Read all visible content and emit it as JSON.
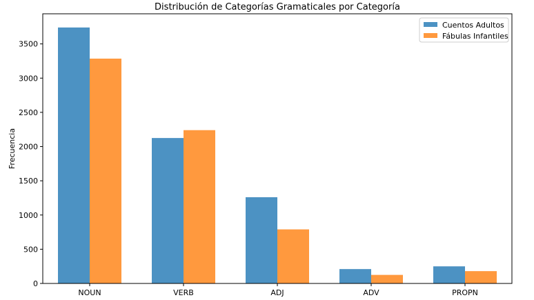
{
  "chart_data": {
    "type": "bar",
    "title": "Distribución de Categorías Gramaticales por Categoría",
    "xlabel": "",
    "ylabel": "Frecuencia",
    "categories": [
      "NOUN",
      "VERB",
      "ADJ",
      "ADV",
      "PROPN"
    ],
    "series": [
      {
        "name": "Cuentos Adultos",
        "color": "#4c92c3",
        "values": [
          3740,
          2125,
          1260,
          210,
          250
        ]
      },
      {
        "name": "Fábulas Infantiles",
        "color": "#ff993e",
        "values": [
          3285,
          2240,
          790,
          125,
          180
        ]
      }
    ],
    "ylim": [
      0,
      3940
    ],
    "yticks": [
      0,
      500,
      1000,
      1500,
      2000,
      2500,
      3000,
      3500
    ],
    "grid": false,
    "legend_position": "top-right"
  }
}
